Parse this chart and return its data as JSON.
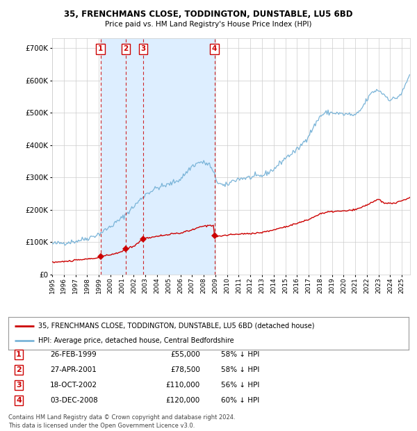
{
  "title1": "35, FRENCHMANS CLOSE, TODDINGTON, DUNSTABLE, LU5 6BD",
  "title2": "Price paid vs. HM Land Registry's House Price Index (HPI)",
  "legend_house": "35, FRENCHMANS CLOSE, TODDINGTON, DUNSTABLE, LU5 6BD (detached house)",
  "legend_hpi": "HPI: Average price, detached house, Central Bedfordshire",
  "footer1": "Contains HM Land Registry data © Crown copyright and database right 2024.",
  "footer2": "This data is licensed under the Open Government Licence v3.0.",
  "transactions": [
    {
      "num": 1,
      "date": "26-FEB-1999",
      "year": 1999.15,
      "price": 55000,
      "price_str": "£55,000",
      "label": "58% ↓ HPI"
    },
    {
      "num": 2,
      "date": "27-APR-2001",
      "year": 2001.32,
      "price": 78500,
      "price_str": "£78,500",
      "label": "58% ↓ HPI"
    },
    {
      "num": 3,
      "date": "18-OCT-2002",
      "year": 2002.8,
      "price": 110000,
      "price_str": "£110,000",
      "label": "56% ↓ HPI"
    },
    {
      "num": 4,
      "date": "03-DEC-2008",
      "year": 2008.92,
      "price": 120000,
      "price_str": "£120,000",
      "label": "60% ↓ HPI"
    }
  ],
  "hpi_color": "#7ab4d8",
  "house_color": "#cc0000",
  "shade_color": "#ddeeff",
  "vline_color": "#cc0000",
  "ylim": [
    0,
    730000
  ],
  "yticks": [
    0,
    100000,
    200000,
    300000,
    400000,
    500000,
    600000,
    700000
  ],
  "xlim_start": 1995.0,
  "xlim_end": 2025.7,
  "background_color": "#ffffff",
  "grid_color": "#cccccc"
}
